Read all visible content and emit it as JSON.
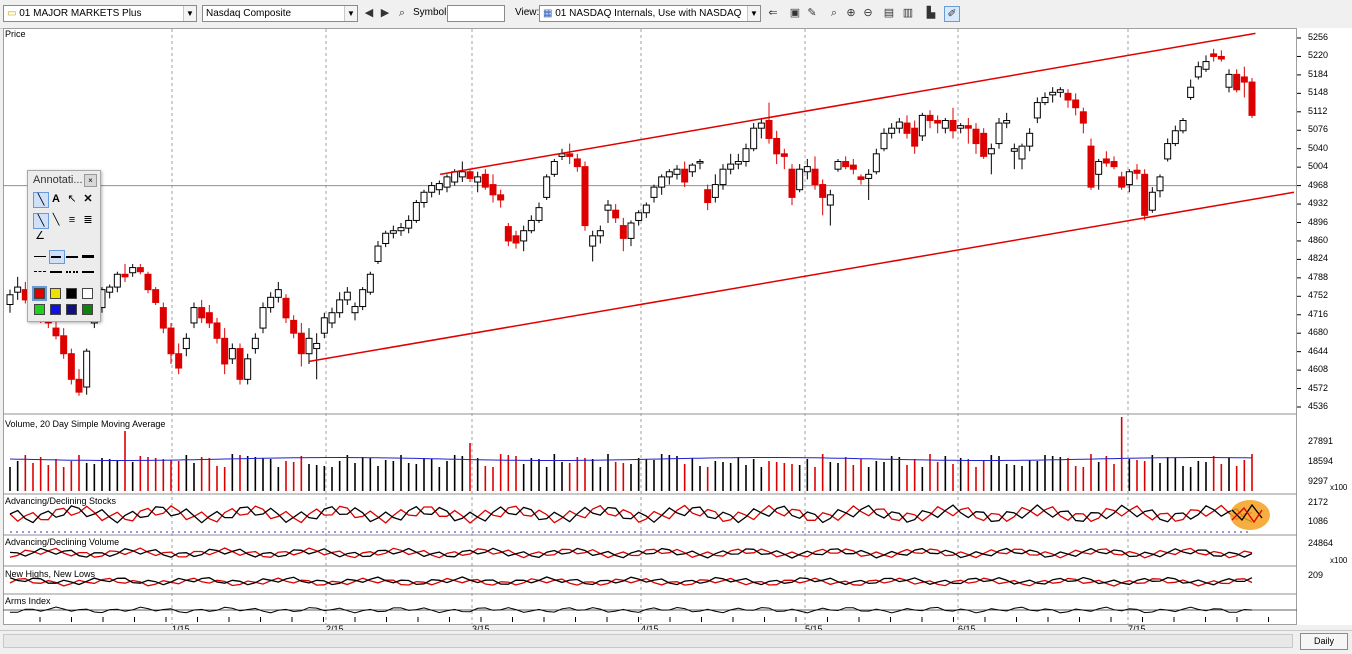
{
  "toolbar": {
    "group_select": "01 MAJOR MARKETS Plus",
    "symbol_select": "Nasdaq Composite",
    "symbol_label": "Symbol:",
    "symbol_value": "",
    "view_label": "View:",
    "view_select": "01 NASDAQ Internals, Use with NASDAQ"
  },
  "annotation_panel": {
    "title": "Annotati..."
  },
  "panels": {
    "price": "Price",
    "volume": "Volume, 20 Day Simple Moving Average",
    "adv_dec_stocks": "Advancing/Declining Stocks",
    "adv_dec_volume": "Advancing/Declining Volume",
    "highs_lows": "New Highs, New Lows",
    "arms": "Arms Index"
  },
  "price_ticks": [
    "5256",
    "5220",
    "5184",
    "5148",
    "5112",
    "5076",
    "5040",
    "5004",
    "4968",
    "4932",
    "4896",
    "4860",
    "4824",
    "4788",
    "4752",
    "4716",
    "4680",
    "4644",
    "4608",
    "4572",
    "4536"
  ],
  "volume_ticks": [
    "27891",
    "18594",
    "9297"
  ],
  "volume_multiplier": "x100",
  "adstocks_ticks": [
    "2172",
    "1086"
  ],
  "advol_ticks": [
    "24864"
  ],
  "advol_multiplier": "x100",
  "hl_ticks": [
    "209"
  ],
  "x_labels": [
    "1/15",
    "2/15",
    "3/15",
    "4/15",
    "5/15",
    "6/15",
    "7/15"
  ],
  "period": "Daily",
  "colors": {
    "up": "#000000",
    "down": "#dd0000",
    "trend": "#e00000",
    "sma": "#2020d0",
    "highlight": "#f5a020"
  },
  "chart_data": {
    "type": "candlestick",
    "title": "Nasdaq Composite",
    "y_range": [
      4520,
      5275
    ],
    "x_labels": [
      "1/15",
      "2/15",
      "3/15",
      "4/15",
      "5/15",
      "6/15",
      "7/15"
    ],
    "candles": [
      {
        "o": 4736,
        "h": 4765,
        "l": 4720,
        "c": 4755
      },
      {
        "o": 4760,
        "h": 4790,
        "l": 4745,
        "c": 4770
      },
      {
        "o": 4765,
        "h": 4780,
        "l": 4738,
        "c": 4745
      },
      {
        "o": 4745,
        "h": 4760,
        "l": 4728,
        "c": 4740
      },
      {
        "o": 4732,
        "h": 4742,
        "l": 4700,
        "c": 4712
      },
      {
        "o": 4712,
        "h": 4725,
        "l": 4690,
        "c": 4700
      },
      {
        "o": 4690,
        "h": 4705,
        "l": 4668,
        "c": 4675
      },
      {
        "o": 4675,
        "h": 4690,
        "l": 4630,
        "c": 4640
      },
      {
        "o": 4640,
        "h": 4650,
        "l": 4580,
        "c": 4590
      },
      {
        "o": 4590,
        "h": 4610,
        "l": 4558,
        "c": 4565
      },
      {
        "o": 4575,
        "h": 4650,
        "l": 4560,
        "c": 4645
      },
      {
        "o": 4700,
        "h": 4728,
        "l": 4690,
        "c": 4720
      },
      {
        "o": 4730,
        "h": 4770,
        "l": 4720,
        "c": 4765
      },
      {
        "o": 4760,
        "h": 4775,
        "l": 4748,
        "c": 4770
      },
      {
        "o": 4770,
        "h": 4800,
        "l": 4760,
        "c": 4795
      },
      {
        "o": 4795,
        "h": 4815,
        "l": 4780,
        "c": 4790
      },
      {
        "o": 4798,
        "h": 4815,
        "l": 4790,
        "c": 4808
      },
      {
        "o": 4808,
        "h": 4815,
        "l": 4795,
        "c": 4800
      },
      {
        "o": 4795,
        "h": 4800,
        "l": 4758,
        "c": 4765
      },
      {
        "o": 4765,
        "h": 4770,
        "l": 4735,
        "c": 4740
      },
      {
        "o": 4730,
        "h": 4740,
        "l": 4680,
        "c": 4690
      },
      {
        "o": 4690,
        "h": 4700,
        "l": 4620,
        "c": 4640
      },
      {
        "o": 4640,
        "h": 4660,
        "l": 4600,
        "c": 4612
      },
      {
        "o": 4650,
        "h": 4680,
        "l": 4635,
        "c": 4670
      },
      {
        "o": 4700,
        "h": 4740,
        "l": 4690,
        "c": 4730
      },
      {
        "o": 4730,
        "h": 4745,
        "l": 4700,
        "c": 4710
      },
      {
        "o": 4720,
        "h": 4735,
        "l": 4690,
        "c": 4700
      },
      {
        "o": 4700,
        "h": 4710,
        "l": 4660,
        "c": 4670
      },
      {
        "o": 4670,
        "h": 4690,
        "l": 4600,
        "c": 4620
      },
      {
        "o": 4630,
        "h": 4660,
        "l": 4620,
        "c": 4650
      },
      {
        "o": 4650,
        "h": 4660,
        "l": 4580,
        "c": 4590
      },
      {
        "o": 4590,
        "h": 4640,
        "l": 4580,
        "c": 4630
      },
      {
        "o": 4650,
        "h": 4680,
        "l": 4640,
        "c": 4670
      },
      {
        "o": 4690,
        "h": 4740,
        "l": 4680,
        "c": 4730
      },
      {
        "o": 4730,
        "h": 4760,
        "l": 4720,
        "c": 4750
      },
      {
        "o": 4750,
        "h": 4780,
        "l": 4740,
        "c": 4765
      },
      {
        "o": 4748,
        "h": 4756,
        "l": 4700,
        "c": 4710
      },
      {
        "o": 4705,
        "h": 4715,
        "l": 4670,
        "c": 4680
      },
      {
        "o": 4680,
        "h": 4700,
        "l": 4615,
        "c": 4640
      },
      {
        "o": 4640,
        "h": 4690,
        "l": 4620,
        "c": 4670
      },
      {
        "o": 4650,
        "h": 4680,
        "l": 4590,
        "c": 4660
      },
      {
        "o": 4680,
        "h": 4720,
        "l": 4670,
        "c": 4710
      },
      {
        "o": 4700,
        "h": 4730,
        "l": 4690,
        "c": 4720
      },
      {
        "o": 4720,
        "h": 4760,
        "l": 4710,
        "c": 4745
      },
      {
        "o": 4745,
        "h": 4770,
        "l": 4735,
        "c": 4760
      },
      {
        "o": 4720,
        "h": 4740,
        "l": 4705,
        "c": 4732
      },
      {
        "o": 4732,
        "h": 4770,
        "l": 4725,
        "c": 4765
      },
      {
        "o": 4760,
        "h": 4800,
        "l": 4755,
        "c": 4795
      },
      {
        "o": 4820,
        "h": 4860,
        "l": 4815,
        "c": 4850
      },
      {
        "o": 4855,
        "h": 4880,
        "l": 4848,
        "c": 4875
      },
      {
        "o": 4875,
        "h": 4890,
        "l": 4865,
        "c": 4880
      },
      {
        "o": 4880,
        "h": 4895,
        "l": 4870,
        "c": 4886
      },
      {
        "o": 4885,
        "h": 4910,
        "l": 4875,
        "c": 4900
      },
      {
        "o": 4900,
        "h": 4940,
        "l": 4895,
        "c": 4935
      },
      {
        "o": 4935,
        "h": 4960,
        "l": 4925,
        "c": 4955
      },
      {
        "o": 4955,
        "h": 4975,
        "l": 4945,
        "c": 4968
      },
      {
        "o": 4960,
        "h": 4978,
        "l": 4950,
        "c": 4972
      },
      {
        "o": 4965,
        "h": 4990,
        "l": 4955,
        "c": 4985
      },
      {
        "o": 4975,
        "h": 5000,
        "l": 4968,
        "c": 4995
      },
      {
        "o": 4985,
        "h": 5015,
        "l": 4975,
        "c": 4995
      },
      {
        "o": 4995,
        "h": 5000,
        "l": 4975,
        "c": 4982
      },
      {
        "o": 4975,
        "h": 4995,
        "l": 4955,
        "c": 4985
      },
      {
        "o": 4990,
        "h": 5000,
        "l": 4960,
        "c": 4965
      },
      {
        "o": 4970,
        "h": 4990,
        "l": 4935,
        "c": 4950
      },
      {
        "o": 4950,
        "h": 4960,
        "l": 4925,
        "c": 4940
      },
      {
        "o": 4888,
        "h": 4895,
        "l": 4850,
        "c": 4860
      },
      {
        "o": 4870,
        "h": 4880,
        "l": 4845,
        "c": 4856
      },
      {
        "o": 4860,
        "h": 4890,
        "l": 4840,
        "c": 4880
      },
      {
        "o": 4880,
        "h": 4910,
        "l": 4875,
        "c": 4900
      },
      {
        "o": 4900,
        "h": 4935,
        "l": 4895,
        "c": 4925
      },
      {
        "o": 4945,
        "h": 4990,
        "l": 4940,
        "c": 4985
      },
      {
        "o": 4990,
        "h": 5020,
        "l": 4985,
        "c": 5015
      },
      {
        "o": 5025,
        "h": 5040,
        "l": 5018,
        "c": 5030
      },
      {
        "o": 5030,
        "h": 5050,
        "l": 5010,
        "c": 5025
      },
      {
        "o": 5020,
        "h": 5030,
        "l": 4995,
        "c": 5005
      },
      {
        "o": 5005,
        "h": 5015,
        "l": 4880,
        "c": 4890
      },
      {
        "o": 4850,
        "h": 4880,
        "l": 4820,
        "c": 4870
      },
      {
        "o": 4870,
        "h": 4890,
        "l": 4855,
        "c": 4880
      },
      {
        "o": 4920,
        "h": 4940,
        "l": 4895,
        "c": 4930
      },
      {
        "o": 4920,
        "h": 4932,
        "l": 4895,
        "c": 4905
      },
      {
        "o": 4890,
        "h": 4905,
        "l": 4840,
        "c": 4865
      },
      {
        "o": 4865,
        "h": 4900,
        "l": 4850,
        "c": 4895
      },
      {
        "o": 4900,
        "h": 4920,
        "l": 4890,
        "c": 4915
      },
      {
        "o": 4915,
        "h": 4935,
        "l": 4905,
        "c": 4930
      },
      {
        "o": 4945,
        "h": 4970,
        "l": 4935,
        "c": 4965
      },
      {
        "o": 4965,
        "h": 4990,
        "l": 4950,
        "c": 4985
      },
      {
        "o": 4985,
        "h": 5000,
        "l": 4970,
        "c": 4995
      },
      {
        "o": 4990,
        "h": 5008,
        "l": 4980,
        "c": 5000
      },
      {
        "o": 5000,
        "h": 5015,
        "l": 4965,
        "c": 4975
      },
      {
        "o": 4995,
        "h": 5012,
        "l": 4985,
        "c": 5008
      },
      {
        "o": 5012,
        "h": 5020,
        "l": 5000,
        "c": 5015
      },
      {
        "o": 4960,
        "h": 4970,
        "l": 4920,
        "c": 4935
      },
      {
        "o": 4945,
        "h": 4990,
        "l": 4935,
        "c": 4970
      },
      {
        "o": 4970,
        "h": 5010,
        "l": 4960,
        "c": 5000
      },
      {
        "o": 5000,
        "h": 5030,
        "l": 4990,
        "c": 5010
      },
      {
        "o": 5010,
        "h": 5030,
        "l": 5000,
        "c": 5015
      },
      {
        "o": 5015,
        "h": 5050,
        "l": 5005,
        "c": 5040
      },
      {
        "o": 5040,
        "h": 5090,
        "l": 5035,
        "c": 5080
      },
      {
        "o": 5080,
        "h": 5100,
        "l": 5060,
        "c": 5090
      },
      {
        "o": 5095,
        "h": 5130,
        "l": 5050,
        "c": 5060
      },
      {
        "o": 5060,
        "h": 5075,
        "l": 5010,
        "c": 5030
      },
      {
        "o": 5030,
        "h": 5040,
        "l": 5000,
        "c": 5025
      },
      {
        "o": 5000,
        "h": 5010,
        "l": 4930,
        "c": 4945
      },
      {
        "o": 4960,
        "h": 5010,
        "l": 4955,
        "c": 5000
      },
      {
        "o": 4995,
        "h": 5020,
        "l": 4980,
        "c": 5005
      },
      {
        "o": 5000,
        "h": 5025,
        "l": 4960,
        "c": 4970
      },
      {
        "o": 4970,
        "h": 4980,
        "l": 4910,
        "c": 4945
      },
      {
        "o": 4930,
        "h": 4960,
        "l": 4890,
        "c": 4950
      },
      {
        "o": 5000,
        "h": 5020,
        "l": 4995,
        "c": 5015
      },
      {
        "o": 5015,
        "h": 5025,
        "l": 5000,
        "c": 5005
      },
      {
        "o": 5008,
        "h": 5020,
        "l": 4990,
        "c": 5000
      },
      {
        "o": 4985,
        "h": 4990,
        "l": 4970,
        "c": 4980
      },
      {
        "o": 4982,
        "h": 5000,
        "l": 4940,
        "c": 4990
      },
      {
        "o": 4995,
        "h": 5040,
        "l": 4990,
        "c": 5030
      },
      {
        "o": 5040,
        "h": 5080,
        "l": 5035,
        "c": 5070
      },
      {
        "o": 5070,
        "h": 5090,
        "l": 5060,
        "c": 5080
      },
      {
        "o": 5080,
        "h": 5100,
        "l": 5070,
        "c": 5092
      },
      {
        "o": 5090,
        "h": 5105,
        "l": 5060,
        "c": 5070
      },
      {
        "o": 5080,
        "h": 5095,
        "l": 5030,
        "c": 5045
      },
      {
        "o": 5065,
        "h": 5110,
        "l": 5055,
        "c": 5105
      },
      {
        "o": 5105,
        "h": 5115,
        "l": 5080,
        "c": 5095
      },
      {
        "o": 5095,
        "h": 5105,
        "l": 5070,
        "c": 5090
      },
      {
        "o": 5080,
        "h": 5100,
        "l": 5070,
        "c": 5095
      },
      {
        "o": 5095,
        "h": 5120,
        "l": 5060,
        "c": 5075
      },
      {
        "o": 5080,
        "h": 5090,
        "l": 5070,
        "c": 5085
      },
      {
        "o": 5085,
        "h": 5100,
        "l": 5050,
        "c": 5080
      },
      {
        "o": 5078,
        "h": 5090,
        "l": 5030,
        "c": 5050
      },
      {
        "o": 5070,
        "h": 5080,
        "l": 5020,
        "c": 5025
      },
      {
        "o": 5030,
        "h": 5050,
        "l": 4990,
        "c": 5040
      },
      {
        "o": 5050,
        "h": 5100,
        "l": 5040,
        "c": 5090
      },
      {
        "o": 5090,
        "h": 5110,
        "l": 5080,
        "c": 5095
      },
      {
        "o": 5035,
        "h": 5050,
        "l": 5000,
        "c": 5040
      },
      {
        "o": 5020,
        "h": 5050,
        "l": 5000,
        "c": 5045
      },
      {
        "o": 5045,
        "h": 5080,
        "l": 5035,
        "c": 5070
      },
      {
        "o": 5100,
        "h": 5140,
        "l": 5090,
        "c": 5130
      },
      {
        "o": 5130,
        "h": 5150,
        "l": 5125,
        "c": 5140
      },
      {
        "o": 5145,
        "h": 5160,
        "l": 5130,
        "c": 5150
      },
      {
        "o": 5150,
        "h": 5160,
        "l": 5140,
        "c": 5155
      },
      {
        "o": 5148,
        "h": 5156,
        "l": 5120,
        "c": 5135
      },
      {
        "o": 5135,
        "h": 5148,
        "l": 5105,
        "c": 5120
      },
      {
        "o": 5112,
        "h": 5120,
        "l": 5070,
        "c": 5090
      },
      {
        "o": 5045,
        "h": 5060,
        "l": 4960,
        "c": 4965
      },
      {
        "o": 4990,
        "h": 5020,
        "l": 4960,
        "c": 5015
      },
      {
        "o": 5020,
        "h": 5035,
        "l": 5005,
        "c": 5012
      },
      {
        "o": 5015,
        "h": 5025,
        "l": 5000,
        "c": 5005
      },
      {
        "o": 4985,
        "h": 4995,
        "l": 4960,
        "c": 4965
      },
      {
        "o": 4970,
        "h": 5000,
        "l": 4955,
        "c": 4995
      },
      {
        "o": 4998,
        "h": 5010,
        "l": 4980,
        "c": 4992
      },
      {
        "o": 4990,
        "h": 5000,
        "l": 4900,
        "c": 4910
      },
      {
        "o": 4920,
        "h": 4965,
        "l": 4915,
        "c": 4955
      },
      {
        "o": 4958,
        "h": 4990,
        "l": 4945,
        "c": 4985
      },
      {
        "o": 5020,
        "h": 5060,
        "l": 5015,
        "c": 5050
      },
      {
        "o": 5050,
        "h": 5085,
        "l": 5045,
        "c": 5075
      },
      {
        "o": 5075,
        "h": 5100,
        "l": 5070,
        "c": 5095
      },
      {
        "o": 5140,
        "h": 5175,
        "l": 5135,
        "c": 5160
      },
      {
        "o": 5180,
        "h": 5210,
        "l": 5175,
        "c": 5200
      },
      {
        "o": 5195,
        "h": 5222,
        "l": 5190,
        "c": 5210
      },
      {
        "o": 5225,
        "h": 5235,
        "l": 5210,
        "c": 5220
      },
      {
        "o": 5220,
        "h": 5232,
        "l": 5210,
        "c": 5215
      },
      {
        "o": 5160,
        "h": 5195,
        "l": 5150,
        "c": 5185
      },
      {
        "o": 5185,
        "h": 5195,
        "l": 5150,
        "c": 5155
      },
      {
        "o": 5180,
        "h": 5200,
        "l": 5140,
        "c": 5170
      },
      {
        "o": 5170,
        "h": 5178,
        "l": 5100,
        "c": 5105
      }
    ],
    "trendlines": [
      {
        "x1": 0.335,
        "y1": 4990,
        "x2": 0.97,
        "y2": 5265
      },
      {
        "x1": 0.233,
        "y1": 4625,
        "x2": 1.0,
        "y2": 4955
      }
    ],
    "reference_y": 4968
  }
}
